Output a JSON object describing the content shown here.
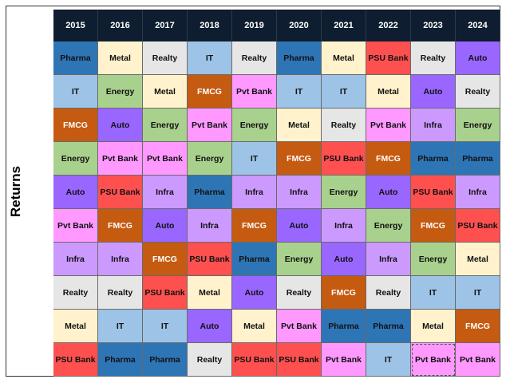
{
  "chart_data": {
    "type": "table",
    "ylabel": "Returns",
    "years": [
      "2015",
      "2016",
      "2017",
      "2018",
      "2019",
      "2020",
      "2021",
      "2022",
      "2023",
      "2024"
    ],
    "columns": [
      [
        "Pharma",
        "IT",
        "FMCG",
        "Energy",
        "Auto",
        "Pvt Bank",
        "Infra",
        "Realty",
        "Metal",
        "PSU Bank"
      ],
      [
        "Metal",
        "Energy",
        "Auto",
        "Pvt Bank",
        "PSU Bank",
        "FMCG",
        "Infra",
        "Realty",
        "IT",
        "Pharma"
      ],
      [
        "Realty",
        "Metal",
        "Energy",
        "Pvt Bank",
        "Infra",
        "Auto",
        "FMCG",
        "PSU Bank",
        "IT",
        "Pharma"
      ],
      [
        "IT",
        "FMCG",
        "Pvt Bank",
        "Energy",
        "Pharma",
        "Infra",
        "PSU Bank",
        "Metal",
        "Auto",
        "Realty"
      ],
      [
        "Realty",
        "Pvt Bank",
        "Energy",
        "IT",
        "Infra",
        "FMCG",
        "Pharma",
        "Auto",
        "Metal",
        "PSU Bank"
      ],
      [
        "Pharma",
        "IT",
        "Metal",
        "FMCG",
        "Infra",
        "Auto",
        "Energy",
        "Realty",
        "Pvt Bank",
        "PSU Bank"
      ],
      [
        "Metal",
        "IT",
        "Realty",
        "PSU Bank",
        "Energy",
        "Infra",
        "Auto",
        "FMCG",
        "Pharma",
        "Pvt Bank"
      ],
      [
        "PSU Bank",
        "Metal",
        "Pvt Bank",
        "FMCG",
        "Auto",
        "Energy",
        "Infra",
        "Realty",
        "Pharma",
        "IT"
      ],
      [
        "Realty",
        "Auto",
        "Infra",
        "Pharma",
        "PSU Bank",
        "FMCG",
        "Energy",
        "IT",
        "Metal",
        "Pvt Bank"
      ],
      [
        "Auto",
        "Realty",
        "Energy",
        "Pharma",
        "Infra",
        "PSU Bank",
        "Metal",
        "IT",
        "FMCG",
        "Pvt Bank"
      ]
    ],
    "sector_colors": {
      "Pharma": "#2e75b6",
      "Metal": "#fff2cc",
      "Realty": "#e7e6e6",
      "IT": "#9dc3e6",
      "PSU Bank": "#ff5050",
      "Auto": "#9966ff",
      "Energy": "#a9d18e",
      "FMCG": "#c55a11",
      "Pvt Bank": "#ff99ff",
      "Infra": "#cc99ff"
    },
    "white_text_sectors": [
      "FMCG"
    ],
    "highlighted_cell": {
      "year": "2023",
      "row": 9
    }
  }
}
